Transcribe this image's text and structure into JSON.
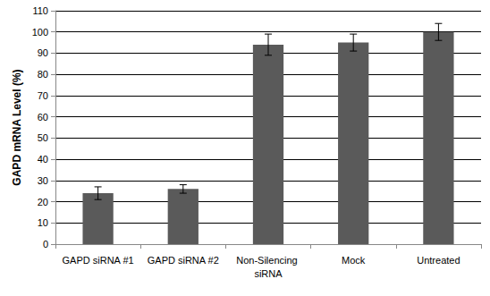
{
  "chart_data": {
    "type": "bar",
    "y_label": "GAPD mRNA Level (%)",
    "categories": [
      "GAPD siRNA #1",
      "GAPD siRNA #2",
      "Non-Silencing siRNA",
      "Mock",
      "Untreated"
    ],
    "values": [
      24,
      26,
      94,
      95,
      100
    ],
    "errors": [
      3,
      2,
      5,
      4,
      4
    ],
    "color": "#5a5a5a",
    "ylim": [
      0,
      110
    ],
    "yticks": [
      0,
      10,
      20,
      30,
      40,
      50,
      60,
      70,
      80,
      90,
      100,
      110
    ],
    "grid": true
  }
}
